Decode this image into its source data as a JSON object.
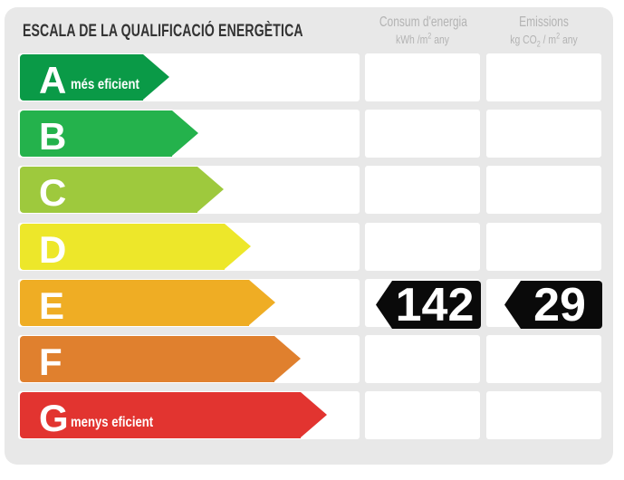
{
  "title": "ESCALA DE LA QUALIFICACIÓ ENERGÈTICA",
  "columns": {
    "consum": {
      "line1": "Consum d'energia",
      "line2_pre": "kWh /m",
      "line2_sup": "2",
      "line2_post": " any"
    },
    "emissions": {
      "line1": "Emissions",
      "line2_pre": "kg CO",
      "line2_sub": "2",
      "line2_mid": " / m",
      "line2_sup": "2",
      "line2_post": " any"
    }
  },
  "chart_data": {
    "type": "bar",
    "title": "ESCALA DE LA QUALIFICACIÓ ENERGÈTICA",
    "categories": [
      "A",
      "B",
      "C",
      "D",
      "E",
      "F",
      "G"
    ],
    "category_labels": {
      "A": "més eficient",
      "G": "menys eficient"
    },
    "colors": [
      "#0A9A47",
      "#24B24C",
      "#9EC93D",
      "#EDE72A",
      "#EFAD24",
      "#E0802E",
      "#E23430"
    ],
    "rating": {
      "letter": "E",
      "consum_kwh_m2_any": 142,
      "emissions_kgco2_m2_any": 29
    },
    "legend_position": "none",
    "grid": false
  },
  "scale": {
    "rows": [
      {
        "letter": "A",
        "label": "més eficient",
        "color": "#0A9A47"
      },
      {
        "letter": "B",
        "color": "#24B24C"
      },
      {
        "letter": "C",
        "color": "#9EC93D"
      },
      {
        "letter": "D",
        "color": "#EDE72A"
      },
      {
        "letter": "E",
        "color": "#EFAD24"
      },
      {
        "letter": "F",
        "color": "#E0802E"
      },
      {
        "letter": "G",
        "label": "menys eficient",
        "color": "#E23430"
      }
    ]
  },
  "rating": {
    "letter": "E",
    "consum_value": "142",
    "emissions_value": "29",
    "badge_color": "#0a0a0a",
    "value_text_color": "#ffffff"
  },
  "panel": {
    "background": "#e8e8e8",
    "cell_background": "#ffffff"
  }
}
